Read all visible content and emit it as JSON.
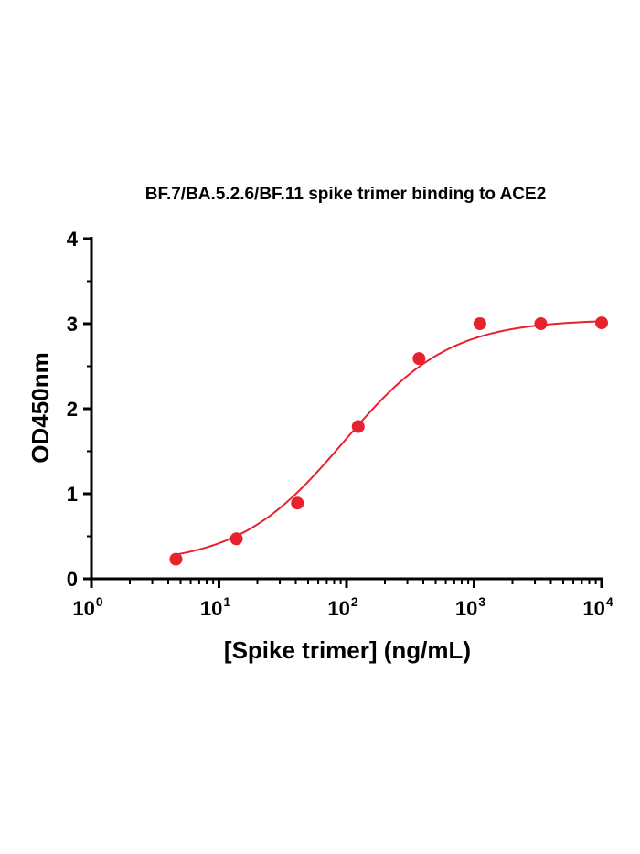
{
  "chart_data": {
    "type": "scatter",
    "title": "BF.7/BA.5.2.6/BF.11 spike trimer binding to ACE2",
    "xlabel": "[Spike trimer] (ng/mL)",
    "ylabel": "OD450nm",
    "x_scale": "log10",
    "xlim": [
      1,
      10000
    ],
    "ylim": [
      0,
      4
    ],
    "x_ticks": [
      {
        "base": "10",
        "exp": "0"
      },
      {
        "base": "10",
        "exp": "1"
      },
      {
        "base": "10",
        "exp": "2"
      },
      {
        "base": "10",
        "exp": "3"
      },
      {
        "base": "10",
        "exp": "4"
      }
    ],
    "y_ticks": [
      "0",
      "1",
      "2",
      "3",
      "4"
    ],
    "series": [
      {
        "color": "#e8212e",
        "points": [
          {
            "x": 4.6,
            "y": 0.23
          },
          {
            "x": 13.7,
            "y": 0.47
          },
          {
            "x": 41.2,
            "y": 0.89
          },
          {
            "x": 123.5,
            "y": 1.79
          },
          {
            "x": 370.4,
            "y": 2.59
          },
          {
            "x": 1111,
            "y": 3.0
          },
          {
            "x": 3333,
            "y": 3.0
          },
          {
            "x": 10000,
            "y": 3.01
          }
        ],
        "fit": "4PL",
        "fit_color": "#e8212e"
      }
    ],
    "grid": false,
    "legend": "none"
  }
}
